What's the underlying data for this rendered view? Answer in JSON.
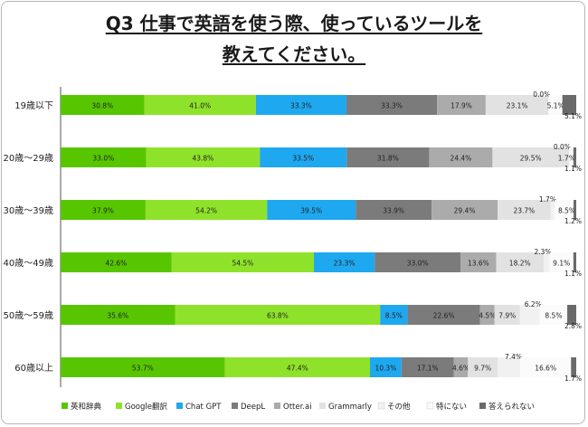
{
  "title_lines": [
    "Q3 仕事で英語を使う際、使っているツールを",
    "教えてください。"
  ],
  "chart_data": {
    "type": "bar",
    "stacked": true,
    "orientation": "horizontal",
    "categories": [
      "19歳以下",
      "20歳〜29歳",
      "30歳〜39歳",
      "40歳〜49歳",
      "50歳〜59歳",
      "60歳以上"
    ],
    "series": [
      {
        "name": "英和辞典",
        "color": "#57c600",
        "values": [
          30.8,
          33.0,
          37.9,
          42.6,
          35.6,
          53.7
        ]
      },
      {
        "name": "Google翻訳",
        "color": "#8fe22a",
        "values": [
          41.0,
          43.8,
          54.2,
          54.5,
          63.8,
          47.4
        ]
      },
      {
        "name": "Chat GPT",
        "color": "#1ea8f0",
        "values": [
          33.3,
          33.5,
          39.5,
          23.3,
          8.5,
          10.3
        ]
      },
      {
        "name": "DeepL",
        "color": "#7b7b7b",
        "values": [
          33.3,
          31.8,
          33.9,
          33.0,
          22.6,
          17.1
        ]
      },
      {
        "name": "Otter.ai",
        "color": "#ababab",
        "values": [
          17.9,
          24.4,
          29.4,
          13.6,
          4.5,
          4.6
        ]
      },
      {
        "name": "Grammarly",
        "color": "#e2e2e2",
        "values": [
          23.1,
          29.5,
          23.7,
          18.2,
          7.9,
          9.7
        ]
      },
      {
        "name": "その他",
        "color": "#f1f1f1",
        "values": [
          0.0,
          0.0,
          1.7,
          2.3,
          6.2,
          7.4
        ]
      },
      {
        "name": "特にない",
        "color": "#fbfbfb",
        "values": [
          5.1,
          1.7,
          8.5,
          9.1,
          8.5,
          16.6
        ]
      },
      {
        "name": "答えられない",
        "color": "#6a6a6a",
        "values": [
          5.1,
          1.1,
          1.2,
          1.1,
          2.8,
          1.7
        ]
      }
    ],
    "labels": [
      [
        "30.8%",
        "41.0%",
        "33.3%",
        "33.3%",
        "17.9%",
        "23.1%",
        "0.0%",
        "5.1%",
        "5.1%"
      ],
      [
        "33.0%",
        "43.8%",
        "33.5%",
        "31.8%",
        "24.4%",
        "29.5%",
        "0.0%",
        "1.7%",
        "1.1%"
      ],
      [
        "37.9%",
        "54.2%",
        "39.5%",
        "33.9%",
        "29.4%",
        "23.7%",
        "1.7%",
        "8.5%",
        "1.2%"
      ],
      [
        "42.6%",
        "54.5%",
        "23.3%",
        "33.0%",
        "13.6%",
        "18.2%",
        "2.3%",
        "9.1%",
        "1.1%"
      ],
      [
        "35.6%",
        "63.8%",
        "8.5%",
        "22.6%",
        "4.5%",
        "7.9%",
        "6.2%",
        "8.5%",
        "2.8%"
      ],
      [
        "53.7%",
        "47.4%",
        "10.3%",
        "17.1%",
        "4.6%",
        "9.7%",
        "7.4%",
        "16.6%",
        "1.7%"
      ]
    ],
    "legend_position": "bottom",
    "grid": false
  }
}
